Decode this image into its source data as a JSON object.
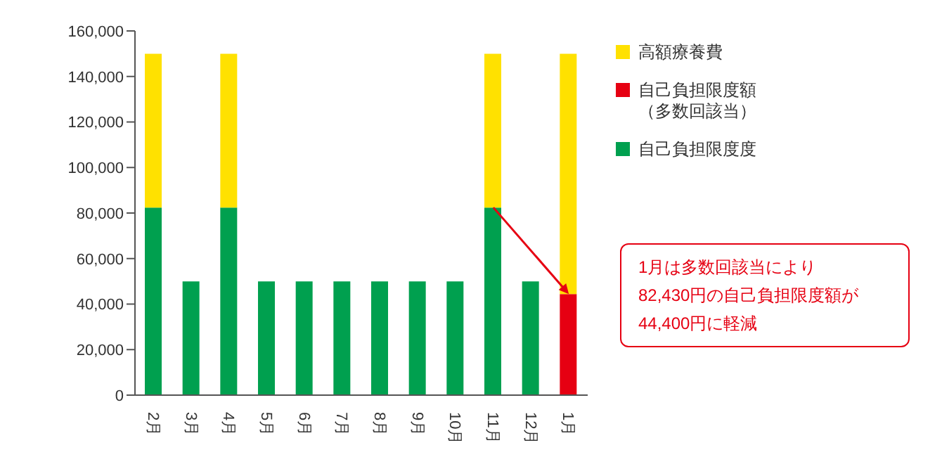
{
  "chart_data": {
    "type": "bar",
    "stacked": true,
    "categories": [
      "2月",
      "3月",
      "4月",
      "5月",
      "6月",
      "7月",
      "8月",
      "9月",
      "10月",
      "11月",
      "12月",
      "1月"
    ],
    "series": [
      {
        "name": "自己負担限度度",
        "color": "#00a04f",
        "values": [
          82430,
          50000,
          82430,
          50000,
          50000,
          50000,
          50000,
          50000,
          50000,
          82430,
          50000,
          null
        ]
      },
      {
        "name": "自己負担限度額（多数回該当）",
        "color": "#e60012",
        "values": [
          null,
          null,
          null,
          null,
          null,
          null,
          null,
          null,
          null,
          null,
          null,
          44400
        ]
      },
      {
        "name": "高額療養費",
        "color": "#ffe100",
        "values": [
          67570,
          null,
          67570,
          null,
          null,
          null,
          null,
          null,
          null,
          67570,
          null,
          105600
        ]
      }
    ],
    "ylim": [
      0,
      160000
    ],
    "yticks": [
      0,
      {
        "value": 20000,
        "label": "20,000"
      },
      {
        "value": 40000,
        "label": "40,000"
      },
      {
        "value": 60000,
        "label": "60,000"
      },
      {
        "value": 80000,
        "label": "80,000"
      },
      {
        "value": 100000,
        "label": "100,000"
      },
      {
        "value": 120000,
        "label": "120,000"
      },
      {
        "value": 140000,
        "label": "140,000"
      },
      {
        "value": 160000,
        "label": "160,000"
      }
    ],
    "grid": false,
    "legend": "right",
    "annotations": [
      "1月は多数回該当により\n82,430円の自己負担限度額が\n44,400円に軽減"
    ]
  }
}
